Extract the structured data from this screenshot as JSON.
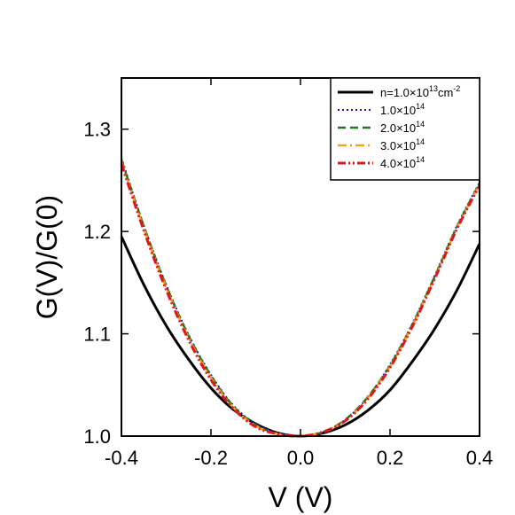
{
  "chart_data": {
    "type": "line",
    "xlabel": "V (V)",
    "ylabel": "G(V)/G(0)",
    "xlim": [
      -0.4,
      0.4
    ],
    "ylim": [
      1.0,
      1.35
    ],
    "xticks": [
      -0.4,
      -0.2,
      0.0,
      0.2,
      0.4
    ],
    "xtick_labels": [
      "-0.4",
      "-0.2",
      "0.0",
      "0.2",
      "0.4"
    ],
    "yticks": [
      1.0,
      1.1,
      1.2,
      1.3
    ],
    "ytick_labels": [
      "1.0",
      "1.1",
      "1.2",
      "1.3"
    ],
    "grid": false,
    "legend_position": "top-right",
    "x": [
      -0.4,
      -0.35,
      -0.3,
      -0.25,
      -0.2,
      -0.15,
      -0.1,
      -0.05,
      0.0,
      0.05,
      0.1,
      0.15,
      0.2,
      0.25,
      0.3,
      0.35,
      0.4
    ],
    "series": [
      {
        "name": "n=1.0×10¹³cm⁻²",
        "label_main": "n=1.0×10",
        "label_sup": "13",
        "label_tail": "cm",
        "label_sup2": "-2",
        "color": "#000000",
        "dash": "solid",
        "width": 3,
        "values": [
          1.195,
          1.148,
          1.108,
          1.075,
          1.047,
          1.026,
          1.012,
          1.003,
          1.0,
          1.003,
          1.011,
          1.025,
          1.045,
          1.073,
          1.105,
          1.143,
          1.188
        ]
      },
      {
        "name": "1.0×10¹⁴",
        "label_main": "1.0×10",
        "label_sup": "14",
        "color": "#1515c8",
        "dash": "dotted",
        "width": 2,
        "values": [
          1.272,
          1.206,
          1.148,
          1.099,
          1.06,
          1.03,
          1.012,
          1.003,
          1.0,
          1.004,
          1.016,
          1.038,
          1.07,
          1.11,
          1.157,
          1.206,
          1.248
        ]
      },
      {
        "name": "2.0×10¹⁴",
        "label_main": "2.0×10",
        "label_sup": "14",
        "color": "#1a7a1a",
        "dash": "dashed",
        "width": 2.5,
        "values": [
          1.27,
          1.205,
          1.147,
          1.098,
          1.059,
          1.029,
          1.011,
          1.002,
          1.0,
          1.004,
          1.016,
          1.038,
          1.069,
          1.109,
          1.156,
          1.205,
          1.247
        ]
      },
      {
        "name": "3.0×10¹⁴",
        "label_main": "3.0×10",
        "label_sup": "14",
        "color": "#f5a21a",
        "dash": "dashdot",
        "width": 2.5,
        "values": [
          1.268,
          1.203,
          1.145,
          1.096,
          1.057,
          1.028,
          1.01,
          1.002,
          1.0,
          1.004,
          1.015,
          1.037,
          1.068,
          1.108,
          1.155,
          1.204,
          1.246
        ]
      },
      {
        "name": "4.0×10¹⁴",
        "label_main": "4.0×10",
        "label_sup": "14",
        "color": "#e5141a",
        "dash": "dashdotdot",
        "width": 3,
        "values": [
          1.266,
          1.201,
          1.143,
          1.094,
          1.055,
          1.027,
          1.009,
          1.002,
          1.0,
          1.004,
          1.015,
          1.036,
          1.067,
          1.107,
          1.154,
          1.203,
          1.245
        ]
      }
    ]
  }
}
